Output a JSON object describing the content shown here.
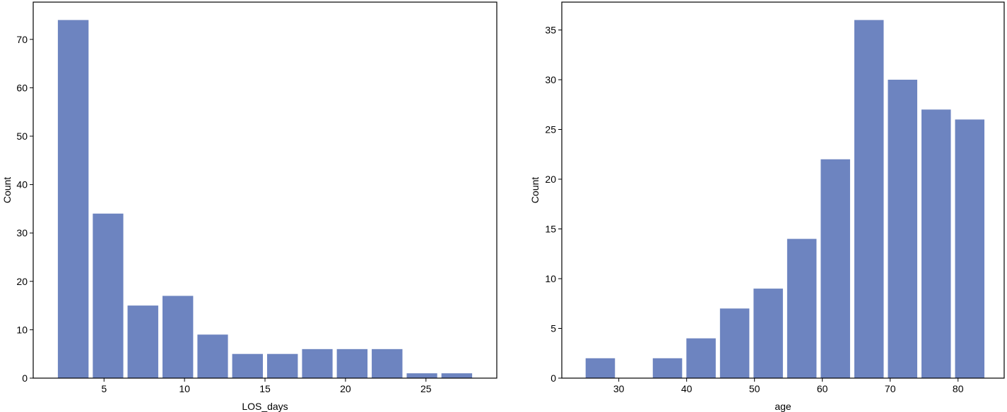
{
  "chart_data": [
    {
      "type": "histogram",
      "x_label": "LOS_days",
      "y_label": "Count",
      "color": "#6d84c0",
      "bins": [
        2.0,
        4.17,
        6.33,
        8.5,
        10.67,
        12.83,
        15.0,
        17.17,
        19.33,
        21.5,
        23.67,
        25.83,
        28.0
      ],
      "values": [
        74,
        34,
        15,
        17,
        9,
        5,
        5,
        6,
        6,
        6,
        1,
        1
      ],
      "xlim": [
        0.6,
        29.4
      ],
      "ylim": [
        0,
        77.7
      ],
      "xticks": [
        5,
        10,
        15,
        20,
        25
      ],
      "yticks": [
        0,
        10,
        20,
        30,
        40,
        50,
        60,
        70
      ]
    },
    {
      "type": "histogram",
      "x_label": "age",
      "y_label": "Count",
      "color": "#6d84c0",
      "bins": [
        24.8,
        29.75,
        34.7,
        39.65,
        44.6,
        49.55,
        54.5,
        59.45,
        64.4,
        69.35,
        74.3,
        79.25,
        84.2
      ],
      "values": [
        2,
        0,
        2,
        4,
        7,
        9,
        14,
        22,
        36,
        30,
        27,
        26
      ],
      "xlim": [
        21.6,
        86.8
      ],
      "ylim": [
        0,
        37.8
      ],
      "xticks": [
        30,
        40,
        50,
        60,
        70,
        80
      ],
      "yticks": [
        0,
        5,
        10,
        15,
        20,
        25,
        30,
        35
      ]
    }
  ]
}
